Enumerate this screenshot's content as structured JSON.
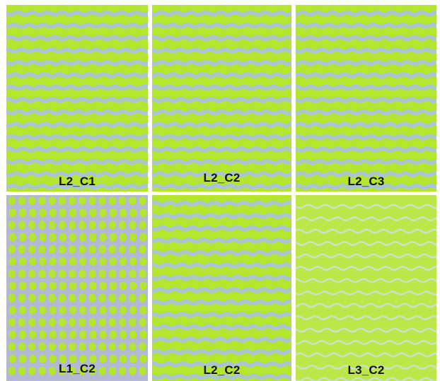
{
  "colors": {
    "green": "#b4e62e",
    "blue": "#aac4d6",
    "lavender": "#b3b8d6",
    "pale_green": "#bde648",
    "pale_blue": "#c8e3c8"
  },
  "panels": [
    {
      "label": "L2_C1",
      "pattern": "wavy-stripes"
    },
    {
      "label": "L2_C2",
      "pattern": "wavy-stripes"
    },
    {
      "label": "L2_C3",
      "pattern": "wavy-stripes"
    },
    {
      "label": "L1_C2",
      "pattern": "dot-grid"
    },
    {
      "label": "L2_C2",
      "pattern": "wavy-stripes"
    },
    {
      "label": "L3_C2",
      "pattern": "thin-wavy-lines"
    }
  ]
}
